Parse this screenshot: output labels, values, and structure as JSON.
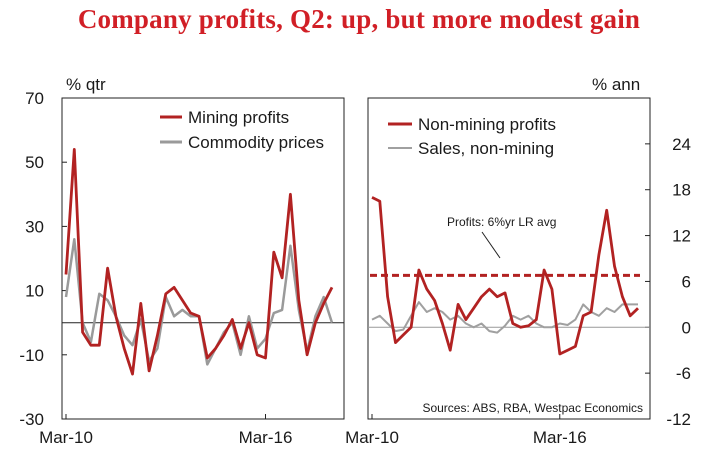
{
  "title": "Company profits, Q2: up, but more modest gain",
  "colors": {
    "title": "#d11f26",
    "mining": "#b22222",
    "commodity": "#9a9a9a",
    "nonmining": "#b22222",
    "sales": "#a0a0a0",
    "axis": "#222222"
  },
  "chart_data": [
    {
      "type": "line",
      "ylabel": "% qtr",
      "ylim": [
        -30,
        70
      ],
      "yticks": [
        70,
        50,
        30,
        10,
        -10,
        -30
      ],
      "x_tick_labels": [
        "Mar-10",
        "Mar-16"
      ],
      "x_tick_index": [
        0,
        24
      ],
      "zero_line": 0,
      "series": [
        {
          "name": "Mining profits",
          "values": [
            15,
            54,
            -3,
            -7,
            -7,
            17,
            2,
            -8,
            -16,
            6,
            -15,
            -4,
            9,
            11,
            7,
            3,
            2,
            -11,
            -8,
            -4,
            1,
            -8,
            0,
            -10,
            -11,
            22,
            14,
            40,
            7,
            -10,
            0,
            6,
            11
          ]
        },
        {
          "name": "Commodity prices",
          "values": [
            8,
            26,
            0,
            -6,
            9,
            7,
            2,
            -4,
            -7,
            1,
            -12,
            -8,
            8,
            2,
            4,
            2,
            2,
            -13,
            -8,
            -3,
            0,
            -10,
            2,
            -8,
            -5,
            3,
            4,
            24,
            4,
            -9,
            2,
            8,
            0
          ]
        }
      ]
    },
    {
      "type": "line",
      "ylabel": "% ann",
      "ylim": [
        -12,
        30
      ],
      "yticks": [
        24,
        18,
        12,
        6,
        0,
        -6,
        -12
      ],
      "x_tick_labels": [
        "Mar-10",
        "Mar-16"
      ],
      "x_tick_index": [
        0,
        24
      ],
      "zero_line": 0,
      "reference_line": {
        "label": "Profits: 6%yr LR avg",
        "value": 6.8
      },
      "source": "Sources: ABS, RBA, Westpac Economics",
      "series": [
        {
          "name": "Non-mining profits",
          "values": [
            17,
            16.5,
            4,
            -2,
            -1,
            0,
            7.5,
            5,
            3.5,
            0.5,
            -3,
            3,
            1,
            2.5,
            4,
            5,
            4,
            4.5,
            0.5,
            0,
            0.2,
            1,
            7.5,
            5,
            -3.5,
            -3,
            -2.5,
            1.5,
            2,
            9.5,
            15.3,
            8,
            4,
            1.5,
            2.5
          ]
        },
        {
          "name": "Sales, non-mining",
          "values": [
            1,
            1.5,
            0.5,
            -0.5,
            -0.3,
            1.5,
            3.3,
            2,
            2.5,
            2,
            1,
            1.5,
            0.5,
            0,
            0.5,
            -0.5,
            -0.7,
            0.2,
            1.5,
            1,
            1.5,
            0.5,
            0,
            0,
            0.5,
            0.3,
            1,
            3,
            2,
            1.5,
            2.5,
            2,
            3,
            3,
            3
          ]
        }
      ]
    }
  ]
}
